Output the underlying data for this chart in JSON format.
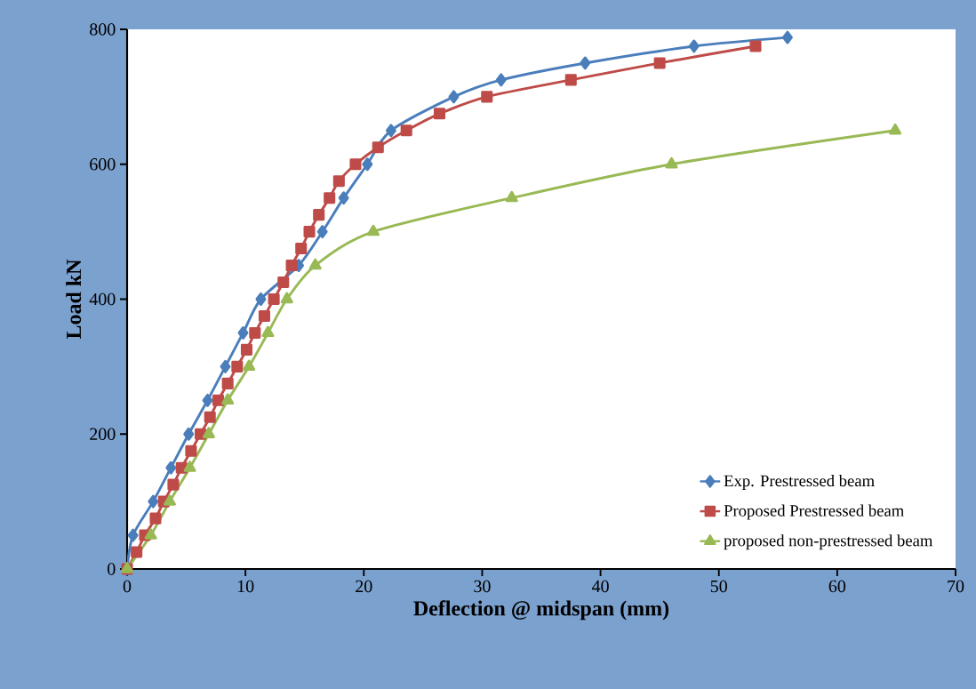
{
  "chart_data": {
    "type": "line",
    "xlabel": "Deflection @ midspan (mm)",
    "ylabel": "Load kN",
    "xlim": [
      0,
      70
    ],
    "ylim": [
      0,
      800
    ],
    "xticks": [
      0,
      10,
      20,
      30,
      40,
      50,
      60,
      70
    ],
    "yticks": [
      0,
      200,
      400,
      600,
      800
    ],
    "grid": false,
    "legend": "bottom right",
    "series": [
      {
        "name": "Exp. Prestressed beam",
        "color": "#4a7ebb",
        "marker": "diamond",
        "x": [
          0,
          0.5,
          2.2,
          3.7,
          5.2,
          6.8,
          8.3,
          9.8,
          11.3,
          14.5,
          16.5,
          18.3,
          20.3,
          22.3,
          27.6,
          31.6,
          38.7,
          47.9,
          55.8
        ],
        "values": [
          0,
          50,
          100,
          150,
          200,
          250,
          300,
          350,
          400,
          450,
          500,
          550,
          600,
          650,
          700,
          725,
          750,
          775,
          788
        ]
      },
      {
        "name": "Proposed Prestressed beam",
        "color": "#be4b48",
        "marker": "square",
        "x": [
          0,
          0.8,
          1.5,
          2.4,
          3.1,
          3.9,
          4.6,
          5.4,
          6.2,
          7.0,
          7.7,
          8.5,
          9.3,
          10.1,
          10.8,
          11.6,
          12.4,
          13.2,
          13.9,
          14.7,
          15.4,
          16.2,
          17.1,
          17.9,
          19.3,
          21.2,
          23.6,
          26.4,
          30.4,
          37.5,
          45.0,
          53.1
        ],
        "values": [
          0,
          25,
          50,
          75,
          100,
          125,
          150,
          175,
          200,
          225,
          250,
          275,
          300,
          325,
          350,
          375,
          400,
          425,
          450,
          475,
          500,
          525,
          550,
          575,
          600,
          625,
          650,
          675,
          700,
          725,
          750,
          775
        ]
      },
      {
        "name": "proposed non-prestressed beam",
        "color": "#98b954",
        "marker": "triangle",
        "x": [
          0,
          2.0,
          3.6,
          5.3,
          6.9,
          8.5,
          10.3,
          11.9,
          13.5,
          15.9,
          20.8,
          32.5,
          46.0,
          64.9
        ],
        "values": [
          0,
          50,
          100,
          150,
          200,
          250,
          300,
          350,
          400,
          450,
          500,
          550,
          600,
          650
        ]
      }
    ]
  }
}
